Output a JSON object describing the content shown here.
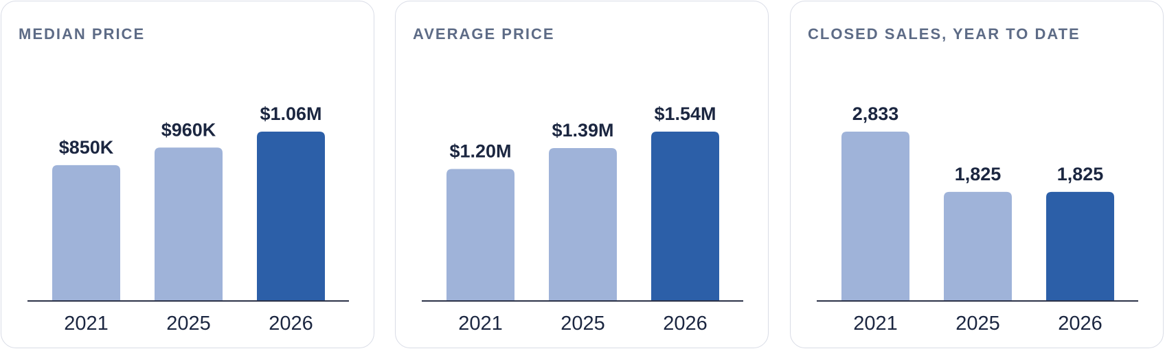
{
  "colors": {
    "past": "#9fb3d9",
    "current": "#2c5fa8",
    "text": "#1b2640",
    "title": "#5d6b86"
  },
  "chart_data": [
    {
      "type": "bar",
      "title": "MEDIAN PRICE",
      "categories": [
        "2021",
        "2025",
        "2026"
      ],
      "values": [
        850000,
        960000,
        1060000
      ],
      "value_labels": [
        "$850K",
        "$960K",
        "$1.06M"
      ],
      "highlight_category": "2026",
      "ylim": [
        0,
        1060000
      ],
      "grid": false,
      "legend": "none"
    },
    {
      "type": "bar",
      "title": "AVERAGE PRICE",
      "categories": [
        "2021",
        "2025",
        "2026"
      ],
      "values": [
        1200000,
        1390000,
        1540000
      ],
      "value_labels": [
        "$1.20M",
        "$1.39M",
        "$1.54M"
      ],
      "highlight_category": "2026",
      "ylim": [
        0,
        1540000
      ],
      "grid": false,
      "legend": "none"
    },
    {
      "type": "bar",
      "title": "CLOSED SALES, YEAR TO DATE",
      "categories": [
        "2021",
        "2025",
        "2026"
      ],
      "values": [
        2833,
        1825,
        1825
      ],
      "value_labels": [
        "2,833",
        "1,825",
        "1,825"
      ],
      "highlight_category": "2026",
      "ylim": [
        0,
        2833
      ],
      "grid": false,
      "legend": "none"
    }
  ]
}
